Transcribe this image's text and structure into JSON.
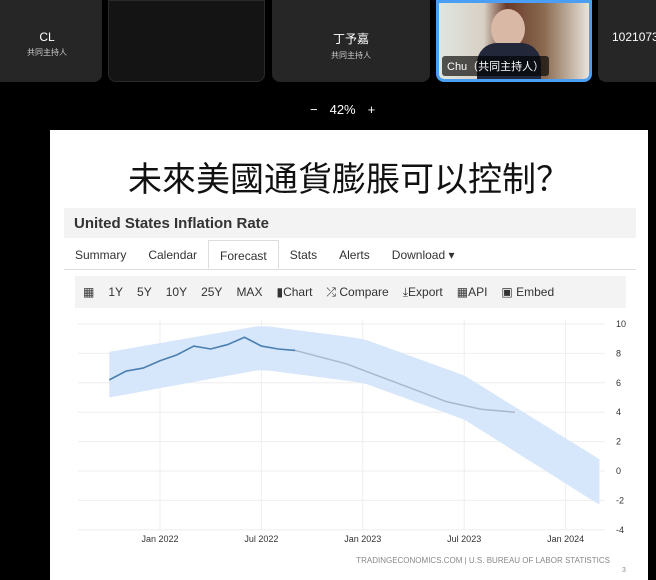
{
  "participants": [
    {
      "name": "CL",
      "role": "共同主持人"
    },
    {
      "name": "",
      "role": ""
    },
    {
      "name": "丁予嘉",
      "role": "共同主持人"
    },
    {
      "name": "Chu（共同主持人）",
      "role": ""
    },
    {
      "name": "1021073",
      "role": ""
    }
  ],
  "zoom": {
    "minus": "−",
    "level": "42%",
    "plus": "+"
  },
  "slide": {
    "title": "未來美國通貨膨脹可以控制？",
    "page": "3"
  },
  "panel": {
    "header": "United States Inflation Rate",
    "tabs": [
      "Summary",
      "Calendar",
      "Forecast",
      "Stats",
      "Alerts",
      "Download ▾"
    ],
    "active_tab": "Forecast",
    "toolbar": [
      "1Y",
      "5Y",
      "10Y",
      "25Y",
      "MAX",
      "Chart",
      "Compare",
      "Export",
      "API",
      "Embed"
    ],
    "toolbar_icons": {
      "calendar": "▦",
      "Chart": "▮",
      "Compare": "⤮",
      "Export": "⤓",
      "API": "▦",
      "Embed": "▣"
    }
  },
  "chart_data": {
    "type": "line",
    "x_ticks": [
      "Jan 2022",
      "Jul 2022",
      "Jan 2023",
      "Jul 2023",
      "Jan 2024"
    ],
    "y_ticks": [
      "10",
      "8",
      "6",
      "4",
      "2",
      "0",
      "-2",
      "-4"
    ],
    "ylim": [
      -4,
      10
    ],
    "grid": true,
    "source": "TRADINGECONOMICS.COM | U.S. BUREAU OF LABOR STATISTICS",
    "actual": {
      "x": [
        "2021-10",
        "2021-11",
        "2021-12",
        "2022-01",
        "2022-02",
        "2022-03",
        "2022-04",
        "2022-05",
        "2022-06",
        "2022-07",
        "2022-08",
        "2022-09"
      ],
      "y": [
        6.2,
        6.8,
        7.0,
        7.5,
        7.9,
        8.5,
        8.3,
        8.6,
        9.1,
        8.5,
        8.3,
        8.2
      ],
      "color": "#4a7fb0"
    },
    "forecast": {
      "x": [
        "2022-09",
        "2022-12",
        "2023-03",
        "2023-06",
        "2023-08",
        "2023-10"
      ],
      "y": [
        8.2,
        7.3,
        6.0,
        4.7,
        4.2,
        4.0
      ],
      "color": "#aab8cc"
    },
    "band": {
      "x": [
        "2021-10",
        "2022-07",
        "2023-01",
        "2023-07",
        "2024-03"
      ],
      "upper": [
        8.1,
        9.9,
        9.0,
        6.5,
        0.8
      ],
      "lower": [
        5.0,
        6.9,
        6.0,
        3.5,
        -2.3
      ],
      "color": "#d6e6fb"
    }
  }
}
